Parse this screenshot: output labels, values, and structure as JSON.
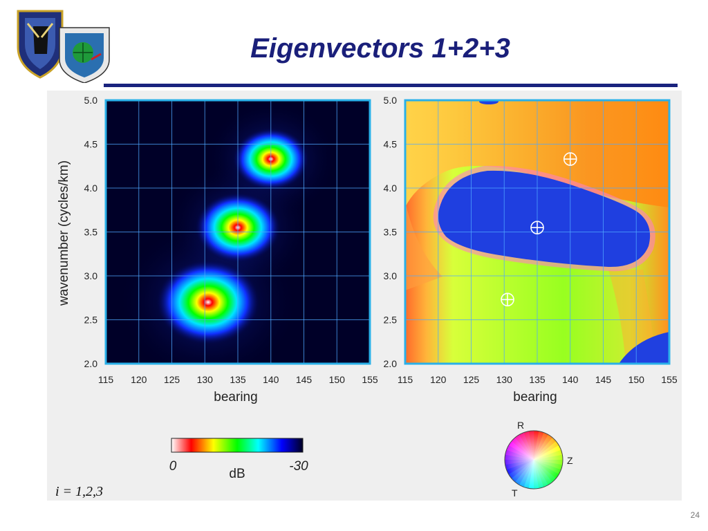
{
  "slide": {
    "title": "Eigenvectors 1+2+3",
    "page_number": "24",
    "index_label": "i = 1,2,3"
  },
  "logos": {
    "left": "AIR FORCE ISR AGENCY",
    "right": "AIR FORCE TECHNICAL APPLICATIONS CENTER"
  },
  "chart_data": [
    {
      "type": "heatmap",
      "xlabel": "bearing",
      "ylabel": "wavenumber (cycles/km)",
      "xlim": [
        115,
        155
      ],
      "ylim": [
        2.0,
        5.0
      ],
      "x_ticks": [
        "115",
        "120",
        "125",
        "130",
        "135",
        "140",
        "145",
        "150",
        "155"
      ],
      "y_ticks": [
        "2.0",
        "2.5",
        "3.0",
        "3.5",
        "4.0",
        "4.5",
        "5.0"
      ],
      "grid": true,
      "colorbar": {
        "label": "dB",
        "min_label": "0",
        "max_label": "-30",
        "colors": [
          "#ffffff",
          "#ff0000",
          "#ffff00",
          "#00ff00",
          "#00ffff",
          "#0000ff",
          "#000022"
        ]
      },
      "peaks": [
        {
          "bearing": 130.5,
          "wavenumber": 2.7
        },
        {
          "bearing": 135.0,
          "wavenumber": 3.55
        },
        {
          "bearing": 140.0,
          "wavenumber": 4.33
        }
      ]
    },
    {
      "type": "heatmap",
      "xlabel": "bearing",
      "xlim": [
        115,
        155
      ],
      "ylim": [
        2.0,
        5.0
      ],
      "x_ticks": [
        "115",
        "120",
        "125",
        "130",
        "135",
        "140",
        "145",
        "150",
        "155"
      ],
      "y_ticks": [
        "2.0",
        "2.5",
        "3.0",
        "3.5",
        "4.0",
        "4.5",
        "5.0"
      ],
      "grid": true,
      "markers": [
        {
          "bearing": 130.5,
          "wavenumber": 2.73
        },
        {
          "bearing": 135.0,
          "wavenumber": 3.55
        },
        {
          "bearing": 140.0,
          "wavenumber": 4.33
        }
      ],
      "color_wheel": {
        "labels": [
          "R",
          "Z",
          "T"
        ]
      }
    }
  ]
}
